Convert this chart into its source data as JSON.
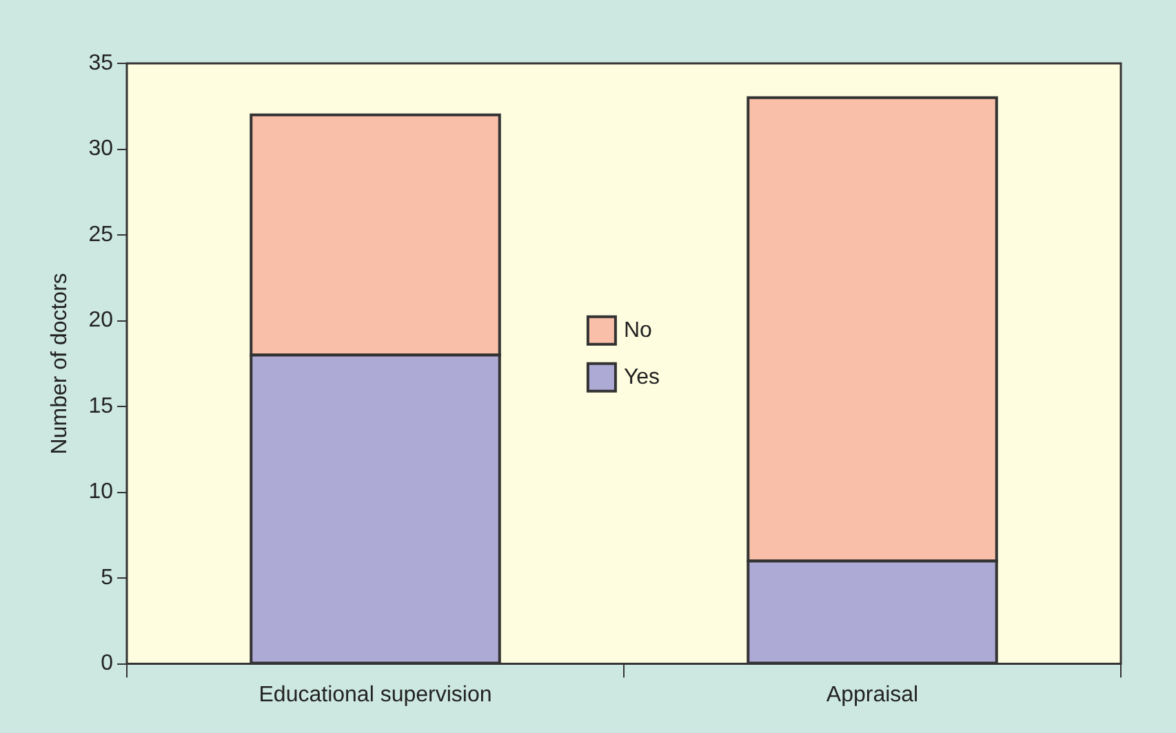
{
  "chart_data": {
    "type": "bar",
    "stacked": true,
    "ylabel": "Number of doctors",
    "categories": [
      "Educational supervision",
      "Appraisal"
    ],
    "series": [
      {
        "name": "Yes",
        "color": "#aeaad6",
        "values": [
          18,
          6
        ]
      },
      {
        "name": "No",
        "color": "#f9bfa8",
        "values": [
          14,
          27
        ]
      }
    ],
    "ylim": [
      0,
      35
    ],
    "yticks": [
      0,
      5,
      10,
      15,
      20,
      25,
      30,
      35
    ],
    "legend": "center"
  }
}
